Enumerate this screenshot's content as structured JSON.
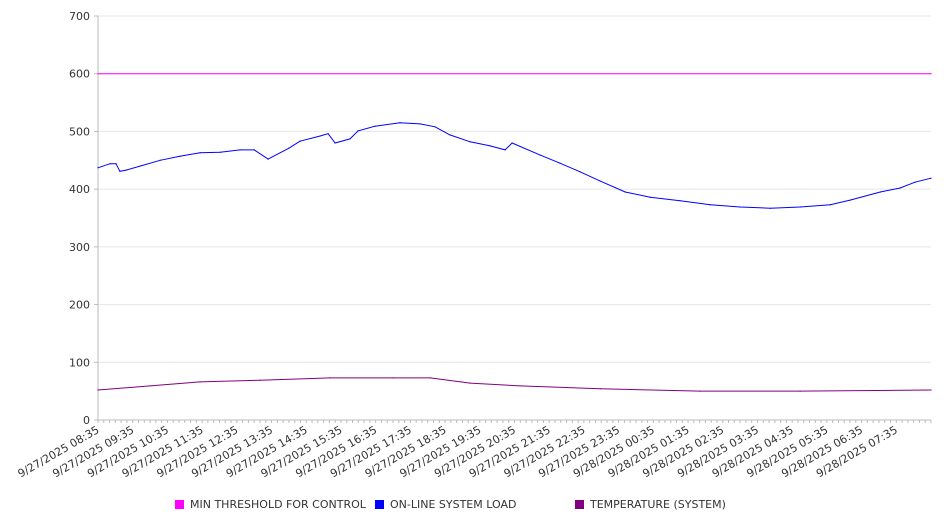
{
  "chart_data": {
    "type": "line",
    "title": "",
    "xlabel": "",
    "ylabel": "",
    "ylim": [
      0,
      700
    ],
    "yticks": [
      0,
      100,
      200,
      300,
      400,
      500,
      600,
      700
    ],
    "x_unit": "hours since 9/27/2025 08:35",
    "xlim": [
      0,
      24
    ],
    "grid": true,
    "legend_position": "bottom",
    "x_tick_labels": [
      "9/27/2025 08:35",
      "9/27/2025 09:35",
      "9/27/2025 10:35",
      "9/27/2025 11:35",
      "9/27/2025 12:35",
      "9/27/2025 13:35",
      "9/27/2025 14:35",
      "9/27/2025 15:35",
      "9/27/2025 16:35",
      "9/27/2025 17:35",
      "9/27/2025 18:35",
      "9/27/2025 19:35",
      "9/27/2025 20:35",
      "9/27/2025 21:35",
      "9/27/2025 22:35",
      "9/27/2025 23:35",
      "9/28/2025 00:35",
      "9/28/2025 01:35",
      "9/28/2025 02:35",
      "9/28/2025 03:35",
      "9/28/2025 04:35",
      "9/28/2025 05:35",
      "9/28/2025 06:35",
      "9/28/2025 07:35"
    ],
    "series": [
      {
        "name": "MIN THRESHOLD FOR CONTROL",
        "color": "#ff00ff",
        "x": [
          0,
          24
        ],
        "values": [
          600,
          600
        ]
      },
      {
        "name": "ON-LINE SYSTEM LOAD",
        "color": "#0000ff",
        "x": [
          0,
          0.35,
          0.52,
          0.63,
          0.81,
          1.21,
          1.79,
          2.36,
          2.94,
          3.52,
          4.09,
          4.5,
          4.9,
          5.5,
          5.82,
          6.4,
          6.63,
          6.83,
          7.26,
          7.49,
          7.98,
          8.7,
          9.28,
          9.71,
          10.14,
          10.72,
          11.3,
          11.73,
          11.93,
          12.74,
          13.31,
          13.89,
          14.47,
          15.19,
          15.91,
          16.77,
          17.64,
          18.5,
          19.37,
          20.23,
          21.1,
          21.67,
          22.54,
          23.11,
          23.54,
          24
        ],
        "values": [
          437,
          444,
          444,
          431,
          433,
          440,
          450,
          457,
          463,
          464,
          468,
          468,
          452,
          471,
          483,
          492,
          496,
          480,
          487,
          501,
          509,
          515,
          513,
          508,
          494,
          482,
          475,
          468,
          480,
          459,
          445,
          430,
          414,
          395,
          386,
          380,
          373,
          369,
          367,
          369,
          373,
          381,
          395,
          402,
          412,
          419
        ]
      },
      {
        "name": "TEMPERATURE (SYSTEM)",
        "color": "#800080",
        "x": [
          0,
          1.5,
          2.94,
          4.67,
          6.69,
          8.5,
          9.57,
          10.72,
          12.16,
          14.47,
          17.35,
          20.23,
          24
        ],
        "values": [
          52,
          59,
          66,
          69,
          73,
          73,
          73,
          64,
          59,
          54,
          50,
          50,
          52
        ]
      }
    ]
  }
}
